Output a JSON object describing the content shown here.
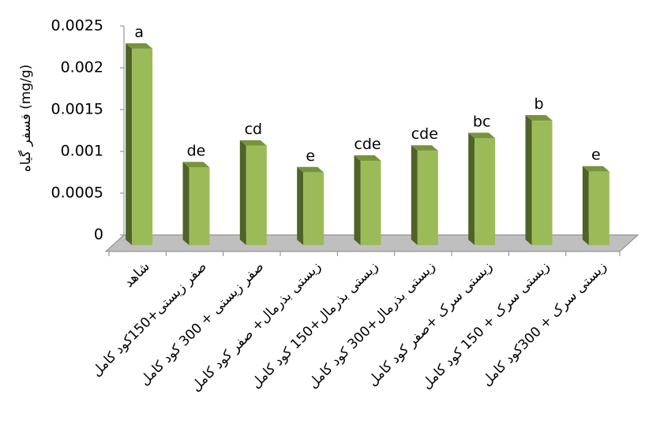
{
  "chart_data": {
    "type": "bar",
    "title": "",
    "xlabel": "",
    "ylabel": "فسفر گیاه (mg/g)",
    "ylim": [
      0,
      0.0025
    ],
    "yticks": [
      "0",
      "0.0005",
      "0.001",
      "0.0015",
      "0.002",
      "0.0025"
    ],
    "grid": false,
    "categories": [
      "شاهد",
      "صفر زیستی+150کود کامل",
      "صفر زیستی + 300 کود کامل",
      "زیستی بذرمال+ صفر کود کامل",
      "زیستی بذرمال+150 کود کامل",
      "زیستی بذرمال+300 کود کامل",
      "زیستی سرک +صفر کود کامل",
      "زیستی سرک + 150 کود کامل",
      "زیستی سرک + 300کود کامل"
    ],
    "values": [
      0.00235,
      0.00093,
      0.00119,
      0.00087,
      0.00101,
      0.00113,
      0.00128,
      0.00149,
      0.00088
    ],
    "data_labels": [
      "a",
      "de",
      "cd",
      "e",
      "cde",
      "cde",
      "bc",
      "b",
      "e"
    ],
    "colors": {
      "bar_front": "#9BBB59",
      "bar_side": "#4F6228",
      "bar_top": "#77933C",
      "floor": "#BFBFBF",
      "axis": "#868686"
    }
  }
}
